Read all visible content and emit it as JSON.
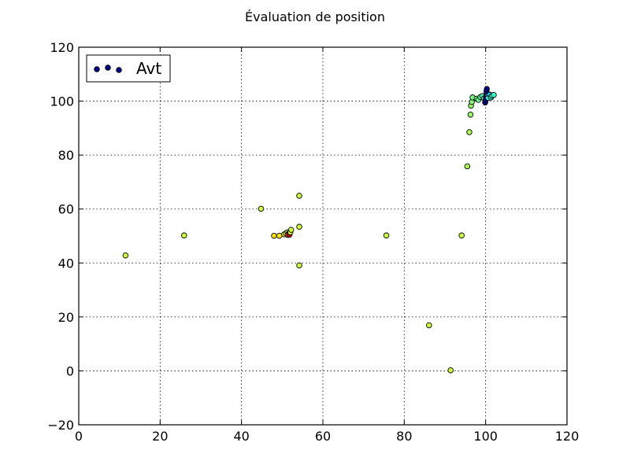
{
  "chart_data": {
    "type": "scatter",
    "title": "Évaluation de position",
    "xlabel": "",
    "ylabel": "",
    "xlim": [
      0,
      120
    ],
    "ylim": [
      -20,
      120
    ],
    "xticks": [
      0,
      20,
      40,
      60,
      80,
      100,
      120
    ],
    "yticks": [
      -20,
      0,
      20,
      40,
      60,
      80,
      100,
      120
    ],
    "grid": true,
    "legend": {
      "position": "top-left",
      "label": "Avt",
      "marker_color": "#00008b"
    },
    "series": [
      {
        "name": "Avt",
        "points": [
          {
            "x": 11.5,
            "y": 42.8,
            "color": "#ccff33"
          },
          {
            "x": 25.9,
            "y": 50.2,
            "color": "#ccff33"
          },
          {
            "x": 44.8,
            "y": 60.1,
            "color": "#ccff33"
          },
          {
            "x": 48.0,
            "y": 50.1,
            "color": "#ffdd00"
          },
          {
            "x": 49.3,
            "y": 50.1,
            "color": "#ffe800"
          },
          {
            "x": 50.5,
            "y": 50.6,
            "color": "#d7ff2a"
          },
          {
            "x": 50.9,
            "y": 51.0,
            "color": "#c8ff36"
          },
          {
            "x": 51.3,
            "y": 51.4,
            "color": "#b5ff45"
          },
          {
            "x": 51.6,
            "y": 51.0,
            "color": "#ff7b00"
          },
          {
            "x": 51.4,
            "y": 50.4,
            "color": "#ff3c00"
          },
          {
            "x": 51.8,
            "y": 50.5,
            "color": "#c40000"
          },
          {
            "x": 52.0,
            "y": 51.4,
            "color": "#e6ff1a"
          },
          {
            "x": 52.2,
            "y": 52.3,
            "color": "#d0ff30"
          },
          {
            "x": 54.2,
            "y": 64.9,
            "color": "#ccff33"
          },
          {
            "x": 54.2,
            "y": 53.4,
            "color": "#ccff33"
          },
          {
            "x": 54.2,
            "y": 39.1,
            "color": "#ccff33"
          },
          {
            "x": 75.6,
            "y": 50.2,
            "color": "#ccff33"
          },
          {
            "x": 86.1,
            "y": 16.9,
            "color": "#ccff33"
          },
          {
            "x": 91.4,
            "y": 0.2,
            "color": "#ccff33"
          },
          {
            "x": 94.1,
            "y": 50.2,
            "color": "#ccff33"
          },
          {
            "x": 95.5,
            "y": 75.8,
            "color": "#aaff55"
          },
          {
            "x": 96.0,
            "y": 88.5,
            "color": "#aaff55"
          },
          {
            "x": 96.3,
            "y": 95.0,
            "color": "#99ff66"
          },
          {
            "x": 96.4,
            "y": 98.3,
            "color": "#99ff66"
          },
          {
            "x": 96.6,
            "y": 99.7,
            "color": "#88ff77"
          },
          {
            "x": 96.8,
            "y": 101.4,
            "color": "#77ff88"
          },
          {
            "x": 97.8,
            "y": 100.9,
            "color": "#77ff88"
          },
          {
            "x": 98.2,
            "y": 100.5,
            "color": "#66ff99"
          },
          {
            "x": 98.7,
            "y": 101.5,
            "color": "#55ffaa"
          },
          {
            "x": 99.2,
            "y": 101.9,
            "color": "#44ffbb"
          },
          {
            "x": 99.6,
            "y": 101.0,
            "color": "#33ffcc"
          },
          {
            "x": 99.9,
            "y": 99.5,
            "color": "#000080"
          },
          {
            "x": 100.0,
            "y": 100.5,
            "color": "#000080"
          },
          {
            "x": 100.1,
            "y": 101.5,
            "color": "#00008b"
          },
          {
            "x": 100.2,
            "y": 102.5,
            "color": "#00008b"
          },
          {
            "x": 100.2,
            "y": 103.6,
            "color": "#00008b"
          },
          {
            "x": 100.3,
            "y": 104.5,
            "color": "#00008b"
          },
          {
            "x": 100.5,
            "y": 102.0,
            "color": "#00aaff"
          },
          {
            "x": 100.6,
            "y": 101.2,
            "color": "#22ffdd"
          },
          {
            "x": 101.0,
            "y": 102.4,
            "color": "#00ccff"
          },
          {
            "x": 101.3,
            "y": 101.4,
            "color": "#11eeee"
          },
          {
            "x": 101.6,
            "y": 102.0,
            "color": "#44ffbb"
          },
          {
            "x": 102.0,
            "y": 102.3,
            "color": "#33ffcc"
          }
        ]
      }
    ]
  }
}
